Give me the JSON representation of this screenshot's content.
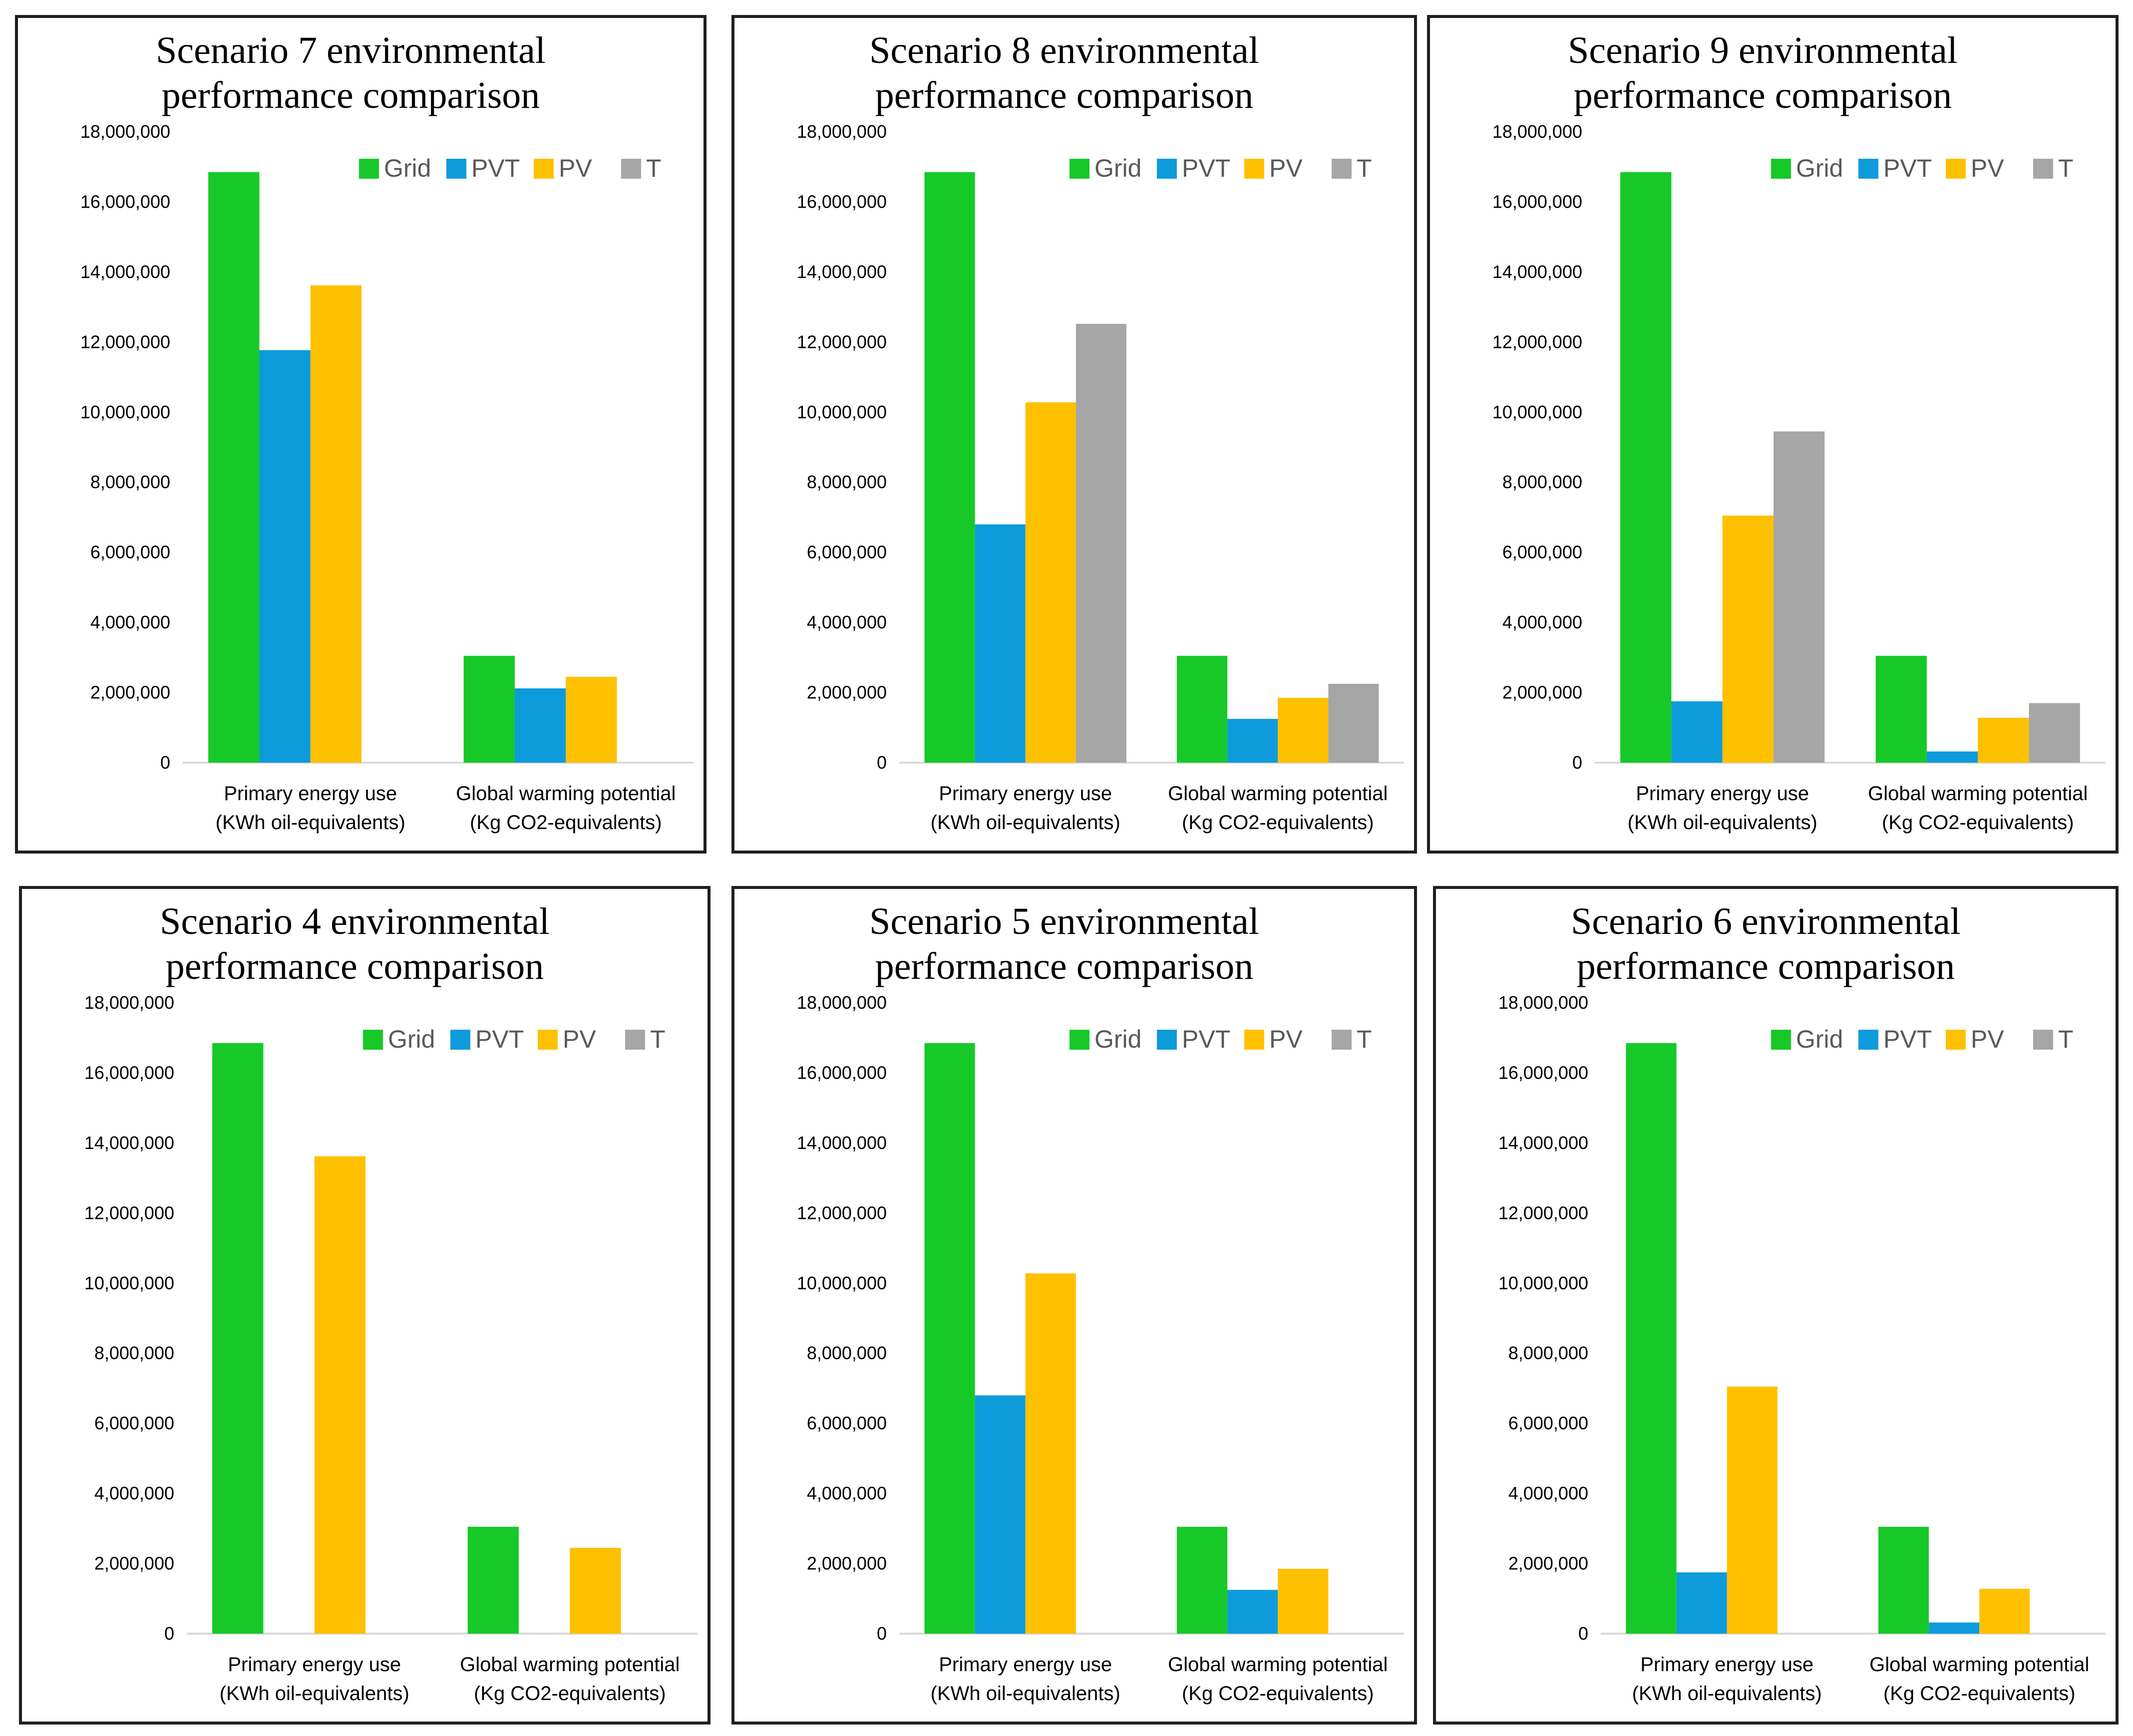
{
  "chart_data": [
    {
      "type": "bar",
      "title_lines": [
        "Scenario 7 environmental",
        "performance comparison"
      ],
      "categories": [
        [
          "Primary energy use",
          "(KWh oil-equivalents)"
        ],
        [
          "Global warming potential",
          "(Kg CO2-equivalents)"
        ]
      ],
      "ylim": [
        0,
        18000000
      ],
      "yticks": [
        0,
        2000000,
        4000000,
        6000000,
        8000000,
        10000000,
        12000000,
        14000000,
        16000000,
        18000000
      ],
      "legend": [
        "Grid",
        "PVT",
        "PV",
        "T"
      ],
      "series": [
        {
          "name": "Grid",
          "color": "#16c929",
          "values": [
            16850000,
            3050000
          ]
        },
        {
          "name": "PVT",
          "color": "#0d9bdc",
          "values": [
            11770000,
            2120000
          ]
        },
        {
          "name": "PV",
          "color": "#ffc000",
          "values": [
            13620000,
            2450000
          ]
        },
        {
          "name": "T",
          "color": "#a6a6a6",
          "values": [
            0,
            0
          ]
        }
      ]
    },
    {
      "type": "bar",
      "title_lines": [
        "Scenario 8 environmental",
        "performance comparison"
      ],
      "categories": [
        [
          "Primary energy use",
          "(KWh oil-equivalents)"
        ],
        [
          "Global warming potential",
          "(Kg CO2-equivalents)"
        ]
      ],
      "ylim": [
        0,
        18000000
      ],
      "yticks": [
        0,
        2000000,
        4000000,
        6000000,
        8000000,
        10000000,
        12000000,
        14000000,
        16000000,
        18000000
      ],
      "legend": [
        "Grid",
        "PVT",
        "PV",
        "T"
      ],
      "series": [
        {
          "name": "Grid",
          "color": "#16c929",
          "values": [
            16850000,
            3050000
          ]
        },
        {
          "name": "PVT",
          "color": "#0d9bdc",
          "values": [
            6800000,
            1250000
          ]
        },
        {
          "name": "PV",
          "color": "#ffc000",
          "values": [
            10280000,
            1850000
          ]
        },
        {
          "name": "T",
          "color": "#a6a6a6",
          "values": [
            12520000,
            2250000
          ]
        }
      ]
    },
    {
      "type": "bar",
      "title_lines": [
        "Scenario 9 environmental",
        "performance comparison"
      ],
      "categories": [
        [
          "Primary energy use",
          "(KWh oil-equivalents)"
        ],
        [
          "Global warming potential",
          "(Kg CO2-equivalents)"
        ]
      ],
      "ylim": [
        0,
        18000000
      ],
      "yticks": [
        0,
        2000000,
        4000000,
        6000000,
        8000000,
        10000000,
        12000000,
        14000000,
        16000000,
        18000000
      ],
      "legend": [
        "Grid",
        "PVT",
        "PV",
        "T"
      ],
      "series": [
        {
          "name": "Grid",
          "color": "#16c929",
          "values": [
            16850000,
            3050000
          ]
        },
        {
          "name": "PVT",
          "color": "#0d9bdc",
          "values": [
            1750000,
            320000
          ]
        },
        {
          "name": "PV",
          "color": "#ffc000",
          "values": [
            7050000,
            1280000
          ]
        },
        {
          "name": "T",
          "color": "#a6a6a6",
          "values": [
            9450000,
            1700000
          ]
        }
      ]
    },
    {
      "type": "bar",
      "title_lines": [
        "Scenario 4 environmental",
        "performance comparison"
      ],
      "categories": [
        [
          "Primary energy use",
          "(KWh oil-equivalents)"
        ],
        [
          "Global warming potential",
          "(Kg CO2-equivalents)"
        ]
      ],
      "ylim": [
        0,
        18000000
      ],
      "yticks": [
        0,
        2000000,
        4000000,
        6000000,
        8000000,
        10000000,
        12000000,
        14000000,
        16000000,
        18000000
      ],
      "legend": [
        "Grid",
        "PVT",
        "PV",
        "T"
      ],
      "series": [
        {
          "name": "Grid",
          "color": "#16c929",
          "values": [
            16850000,
            3050000
          ]
        },
        {
          "name": "PVT",
          "color": "#0d9bdc",
          "values": [
            0,
            0
          ]
        },
        {
          "name": "PV",
          "color": "#ffc000",
          "values": [
            13620000,
            2450000
          ]
        },
        {
          "name": "T",
          "color": "#a6a6a6",
          "values": [
            0,
            0
          ]
        }
      ]
    },
    {
      "type": "bar",
      "title_lines": [
        "Scenario 5 environmental",
        "performance comparison"
      ],
      "categories": [
        [
          "Primary energy use",
          "(KWh oil-equivalents)"
        ],
        [
          "Global warming potential",
          "(Kg CO2-equivalents)"
        ]
      ],
      "ylim": [
        0,
        18000000
      ],
      "yticks": [
        0,
        2000000,
        4000000,
        6000000,
        8000000,
        10000000,
        12000000,
        14000000,
        16000000,
        18000000
      ],
      "legend": [
        "Grid",
        "PVT",
        "PV",
        "T"
      ],
      "series": [
        {
          "name": "Grid",
          "color": "#16c929",
          "values": [
            16850000,
            3050000
          ]
        },
        {
          "name": "PVT",
          "color": "#0d9bdc",
          "values": [
            6800000,
            1250000
          ]
        },
        {
          "name": "PV",
          "color": "#ffc000",
          "values": [
            10280000,
            1850000
          ]
        },
        {
          "name": "T",
          "color": "#a6a6a6",
          "values": [
            0,
            0
          ]
        }
      ]
    },
    {
      "type": "bar",
      "title_lines": [
        "Scenario 6 environmental",
        "performance comparison"
      ],
      "categories": [
        [
          "Primary energy use",
          "(KWh oil-equivalents)"
        ],
        [
          "Global warming potential",
          "(Kg CO2-equivalents)"
        ]
      ],
      "ylim": [
        0,
        18000000
      ],
      "yticks": [
        0,
        2000000,
        4000000,
        6000000,
        8000000,
        10000000,
        12000000,
        14000000,
        16000000,
        18000000
      ],
      "legend": [
        "Grid",
        "PVT",
        "PV",
        "T"
      ],
      "series": [
        {
          "name": "Grid",
          "color": "#16c929",
          "values": [
            16850000,
            3050000
          ]
        },
        {
          "name": "PVT",
          "color": "#0d9bdc",
          "values": [
            1750000,
            320000
          ]
        },
        {
          "name": "PV",
          "color": "#ffc000",
          "values": [
            7050000,
            1280000
          ]
        },
        {
          "name": "T",
          "color": "#a6a6a6",
          "values": [
            0,
            0
          ]
        }
      ]
    }
  ]
}
